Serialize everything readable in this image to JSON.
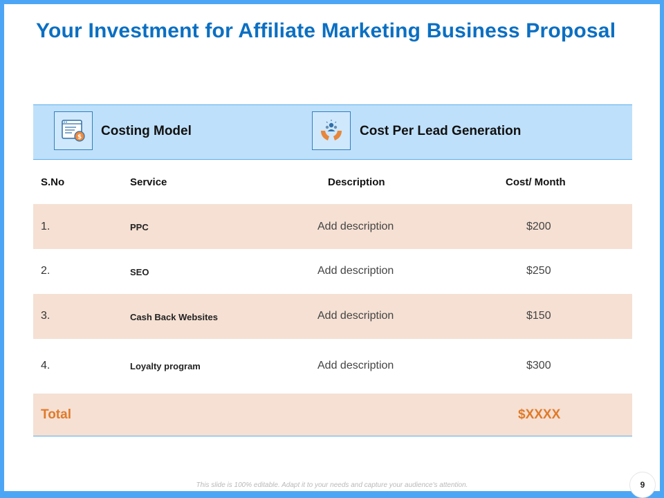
{
  "slide": {
    "title": "Your Investment for Affiliate Marketing Business Proposal",
    "page_number": "9",
    "footer_note": "This slide is 100% editable. Adapt it to your needs and capture your audience's attention."
  },
  "header_band": {
    "left": {
      "icon": "invoice-icon",
      "label": "Costing Model"
    },
    "right": {
      "icon": "hands-people-icon",
      "label": "Cost Per Lead Generation"
    }
  },
  "table": {
    "columns": [
      "S.No",
      "Service",
      "Description",
      "Cost/ Month"
    ],
    "rows": [
      {
        "sno": "1.",
        "service": "PPC",
        "description": "Add description",
        "cost": "$200"
      },
      {
        "sno": "2.",
        "service": "SEO",
        "description": "Add description",
        "cost": "$250"
      },
      {
        "sno": "3.",
        "service": "Cash Back Websites",
        "description": "Add description",
        "cost": "$150"
      },
      {
        "sno": "4.",
        "service": "Loyalty program",
        "description": "Add description",
        "cost": "$300"
      }
    ],
    "total": {
      "label": "Total",
      "value": "$XXXX"
    }
  },
  "colors": {
    "frame": "#4da6f5",
    "title": "#0b6fc2",
    "header_band": "#bfe0fa",
    "row_shade": "#f5e0d3",
    "total_text": "#e07a2a"
  }
}
